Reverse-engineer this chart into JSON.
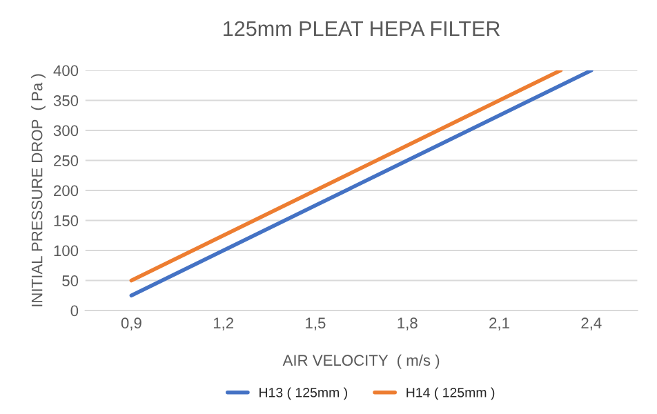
{
  "chart_data": {
    "type": "line",
    "title": "125mm PLEAT HEPA FILTER",
    "xlabel": "AIR VELOCITY  ( m/s )",
    "ylabel": "INITIAL PRESSURE DROP  ( Pa )",
    "x": [
      0.9,
      1.2,
      1.5,
      1.8,
      2.1,
      2.4
    ],
    "series": [
      {
        "name": "H13 ( 125mm )",
        "color": "#4472c4",
        "values": [
          25,
          100,
          175,
          250,
          325,
          400
        ]
      },
      {
        "name": "H14 ( 125mm )",
        "color": "#ed7d31",
        "x": [
          0.9,
          1.2,
          1.5,
          1.8,
          2.1,
          2.3
        ],
        "values": [
          50,
          125,
          200,
          275,
          350,
          400
        ]
      }
    ],
    "xlim": [
      0.75,
      2.55
    ],
    "xticks": [
      {
        "value": 0.9,
        "label": "0,9"
      },
      {
        "value": 1.2,
        "label": "1,2"
      },
      {
        "value": 1.5,
        "label": "1,5"
      },
      {
        "value": 1.8,
        "label": "1,8"
      },
      {
        "value": 2.1,
        "label": "2,1"
      },
      {
        "value": 2.4,
        "label": "2,4"
      }
    ],
    "ylim": [
      0,
      400
    ],
    "yticks": [
      0,
      50,
      100,
      150,
      200,
      250,
      300,
      350,
      400
    ],
    "grid": "y",
    "legend": "bottom",
    "marker": "none",
    "line_style": "solid"
  }
}
